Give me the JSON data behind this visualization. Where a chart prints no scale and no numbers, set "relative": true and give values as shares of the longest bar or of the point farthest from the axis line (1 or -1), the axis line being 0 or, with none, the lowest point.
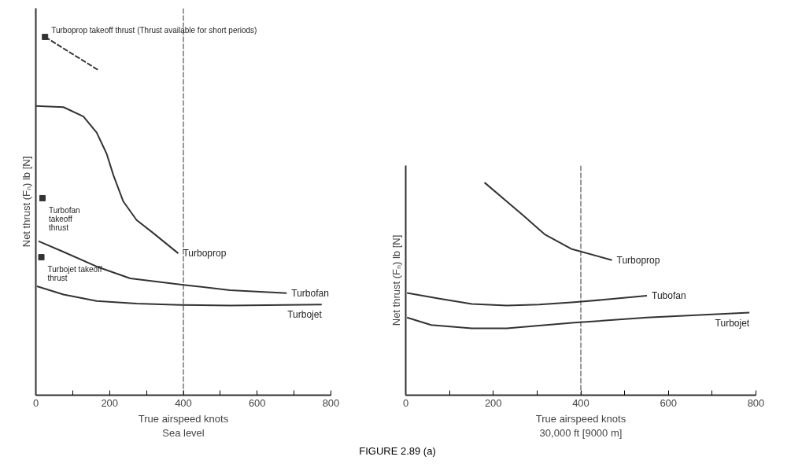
{
  "chart_data": [
    {
      "type": "line",
      "relative": true,
      "xlabel": "True airspeed knots\nSea level",
      "ylabel": "Net thrust (Fₙ) lb [N]",
      "xlim": [
        0,
        800
      ],
      "xticks": [
        0,
        {
          "value": 100,
          "label": null
        },
        200,
        {
          "value": 300,
          "label": null
        },
        400,
        {
          "value": 500,
          "label": null
        },
        600,
        {
          "value": 700,
          "label": null
        },
        800
      ],
      "tick_labels": "x",
      "series": [
        {
          "name": "Turboprop",
          "color": "#333333",
          "x": [
            0,
            75,
            129,
            165,
            192,
            210,
            237,
            273,
            319,
            386
          ],
          "values": [
            0.807,
            0.804,
            0.778,
            0.733,
            0.674,
            0.615,
            0.541,
            0.489,
            0.452,
            0.396
          ]
        },
        {
          "name": "Turbofan",
          "color": "#333333",
          "x": [
            7,
            75,
            165,
            256,
            409,
            526,
            680
          ],
          "values": [
            0.43,
            0.4,
            0.359,
            0.326,
            0.307,
            0.293,
            0.285
          ]
        },
        {
          "name": "Turbojet",
          "color": "#333333",
          "x": [
            3,
            75,
            165,
            273,
            391,
            526,
            775
          ],
          "values": [
            0.304,
            0.281,
            0.263,
            0.256,
            0.252,
            0.25,
            0.253
          ]
        },
        {
          "color": "#333333",
          "line_style": "dashed",
          "x": [
            25,
            170
          ],
          "values": [
            1.0,
            0.907
          ]
        },
        {
          "type": "scatter",
          "marker": "square",
          "color": "#333333",
          "x": [
            25,
            18,
            15
          ],
          "values": [
            1.0,
            0.55,
            0.385
          ]
        }
      ],
      "ref_lines": [
        {
          "axis": "x",
          "value": 400,
          "color": "#333333",
          "line_style": "dashed"
        }
      ],
      "annotations": [
        {
          "text": "Turboprop takeoff thrust (Thrust available for short periods)",
          "x": 25,
          "y": 1.0
        },
        {
          "text": "Turbofan\ntakeoff\nthrust",
          "x": 18,
          "y": 0.55
        },
        {
          "text": "Turbojet takeoff\nthrust",
          "x": 15,
          "y": 0.385
        }
      ]
    },
    {
      "type": "line",
      "relative": true,
      "xlabel": "True airspeed knots\n30,000 ft [9000 m]",
      "ylabel": "Net thrust (Fₙ) lb [N]",
      "xlim": [
        0,
        800
      ],
      "xticks": [
        0,
        {
          "value": 100,
          "label": null
        },
        200,
        {
          "value": 300,
          "label": null
        },
        400,
        {
          "value": 500,
          "label": null
        },
        600,
        {
          "value": 700,
          "label": null
        },
        800
      ],
      "tick_labels": "x",
      "series": [
        {
          "name": "Turboprop",
          "color": "#333333",
          "x": [
            180,
            268,
            317,
            378,
            471
          ],
          "values": [
            1.0,
            0.846,
            0.757,
            0.688,
            0.635
          ]
        },
        {
          "name": "Tubofan",
          "color": "#333333",
          "x": [
            3,
            77,
            151,
            231,
            305,
            385,
            458,
            551
          ],
          "values": [
            0.481,
            0.454,
            0.429,
            0.422,
            0.426,
            0.437,
            0.45,
            0.468
          ]
        },
        {
          "name": "Turbojet",
          "color": "#333333",
          "x": [
            3,
            58,
            151,
            231,
            305,
            385,
            551,
            785
          ],
          "values": [
            0.365,
            0.33,
            0.314,
            0.314,
            0.327,
            0.341,
            0.365,
            0.388
          ]
        }
      ],
      "ref_lines": [
        {
          "axis": "x",
          "value": 400,
          "color": "#333333",
          "line_style": "dashed"
        }
      ],
      "annotations": [
        "FIGURE 2.89 (a)"
      ]
    }
  ]
}
